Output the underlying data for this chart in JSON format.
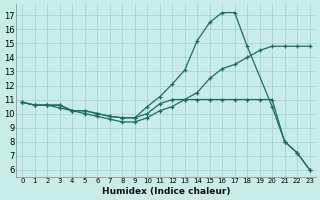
{
  "xlabel": "Humidex (Indice chaleur)",
  "bg_color": "#c8ece6",
  "grid_color": "#a8d4cc",
  "line_color": "#1a6e60",
  "xlim": [
    -0.5,
    23.5
  ],
  "ylim": [
    5.5,
    17.8
  ],
  "xticks": [
    0,
    1,
    2,
    3,
    4,
    5,
    6,
    7,
    8,
    9,
    10,
    11,
    12,
    13,
    14,
    15,
    16,
    17,
    18,
    19,
    20,
    21,
    22,
    23
  ],
  "yticks": [
    6,
    7,
    8,
    9,
    10,
    11,
    12,
    13,
    14,
    15,
    16,
    17
  ],
  "curve1_x": [
    0,
    1,
    2,
    3,
    4,
    5,
    6,
    7,
    8,
    9,
    10,
    11,
    12,
    13,
    14,
    15,
    16,
    17,
    18,
    20,
    21,
    22,
    23
  ],
  "curve1_y": [
    10.8,
    10.6,
    10.6,
    10.6,
    10.2,
    10.2,
    10.0,
    9.8,
    9.7,
    9.7,
    10.5,
    11.2,
    12.1,
    13.1,
    15.2,
    16.5,
    17.2,
    17.2,
    14.8,
    10.5,
    8.0,
    7.2,
    6.0
  ],
  "curve2_x": [
    0,
    1,
    2,
    3,
    4,
    5,
    6,
    7,
    8,
    9,
    10,
    11,
    12,
    13,
    14,
    15,
    16,
    17,
    18,
    19,
    20,
    21,
    22,
    23
  ],
  "curve2_y": [
    10.8,
    10.6,
    10.6,
    10.6,
    10.2,
    10.2,
    10.0,
    9.8,
    9.7,
    9.7,
    10.0,
    10.7,
    11.0,
    11.0,
    11.0,
    11.0,
    11.0,
    11.0,
    11.0,
    11.0,
    11.0,
    8.0,
    7.2,
    6.0
  ],
  "curve3_x": [
    0,
    1,
    2,
    3,
    4,
    5,
    6,
    7,
    8,
    9,
    10,
    11,
    12,
    13,
    14,
    15,
    16,
    17,
    18,
    19,
    20,
    21,
    22,
    23
  ],
  "curve3_y": [
    10.8,
    10.6,
    10.6,
    10.4,
    10.2,
    10.0,
    9.8,
    9.6,
    9.4,
    9.4,
    9.7,
    10.2,
    10.5,
    11.0,
    11.5,
    12.5,
    13.2,
    13.5,
    14.0,
    14.5,
    14.8,
    14.8,
    14.8,
    14.8
  ]
}
